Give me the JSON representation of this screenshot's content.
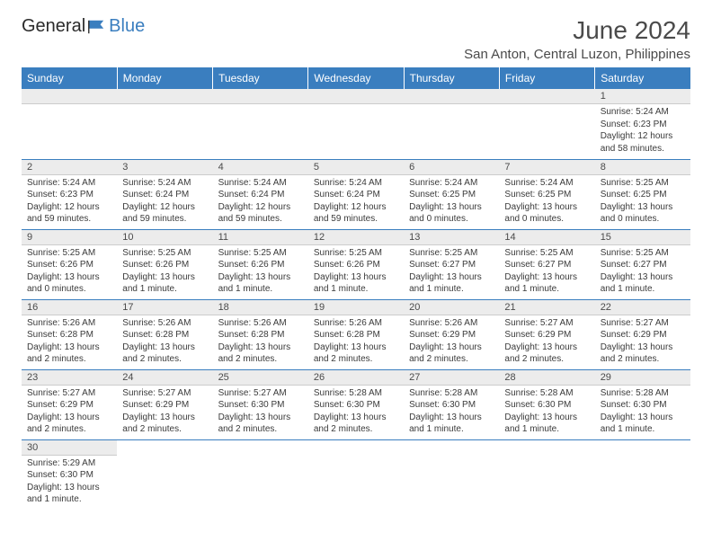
{
  "brand": {
    "part1": "General",
    "part2": "Blue"
  },
  "title": "June 2024",
  "location": "San Anton, Central Luzon, Philippines",
  "colors": {
    "header_bg": "#3a7ebf",
    "header_text": "#ffffff",
    "daynum_bg": "#ececec",
    "row_border": "#3a7ebf",
    "text": "#3a3a3a"
  },
  "weekdays": [
    "Sunday",
    "Monday",
    "Tuesday",
    "Wednesday",
    "Thursday",
    "Friday",
    "Saturday"
  ],
  "weeks": [
    [
      {
        "blank": true
      },
      {
        "blank": true
      },
      {
        "blank": true
      },
      {
        "blank": true
      },
      {
        "blank": true
      },
      {
        "blank": true
      },
      {
        "num": "1",
        "sunrise": "Sunrise: 5:24 AM",
        "sunset": "Sunset: 6:23 PM",
        "daylight": "Daylight: 12 hours and 58 minutes."
      }
    ],
    [
      {
        "num": "2",
        "sunrise": "Sunrise: 5:24 AM",
        "sunset": "Sunset: 6:23 PM",
        "daylight": "Daylight: 12 hours and 59 minutes."
      },
      {
        "num": "3",
        "sunrise": "Sunrise: 5:24 AM",
        "sunset": "Sunset: 6:24 PM",
        "daylight": "Daylight: 12 hours and 59 minutes."
      },
      {
        "num": "4",
        "sunrise": "Sunrise: 5:24 AM",
        "sunset": "Sunset: 6:24 PM",
        "daylight": "Daylight: 12 hours and 59 minutes."
      },
      {
        "num": "5",
        "sunrise": "Sunrise: 5:24 AM",
        "sunset": "Sunset: 6:24 PM",
        "daylight": "Daylight: 12 hours and 59 minutes."
      },
      {
        "num": "6",
        "sunrise": "Sunrise: 5:24 AM",
        "sunset": "Sunset: 6:25 PM",
        "daylight": "Daylight: 13 hours and 0 minutes."
      },
      {
        "num": "7",
        "sunrise": "Sunrise: 5:24 AM",
        "sunset": "Sunset: 6:25 PM",
        "daylight": "Daylight: 13 hours and 0 minutes."
      },
      {
        "num": "8",
        "sunrise": "Sunrise: 5:25 AM",
        "sunset": "Sunset: 6:25 PM",
        "daylight": "Daylight: 13 hours and 0 minutes."
      }
    ],
    [
      {
        "num": "9",
        "sunrise": "Sunrise: 5:25 AM",
        "sunset": "Sunset: 6:26 PM",
        "daylight": "Daylight: 13 hours and 0 minutes."
      },
      {
        "num": "10",
        "sunrise": "Sunrise: 5:25 AM",
        "sunset": "Sunset: 6:26 PM",
        "daylight": "Daylight: 13 hours and 1 minute."
      },
      {
        "num": "11",
        "sunrise": "Sunrise: 5:25 AM",
        "sunset": "Sunset: 6:26 PM",
        "daylight": "Daylight: 13 hours and 1 minute."
      },
      {
        "num": "12",
        "sunrise": "Sunrise: 5:25 AM",
        "sunset": "Sunset: 6:26 PM",
        "daylight": "Daylight: 13 hours and 1 minute."
      },
      {
        "num": "13",
        "sunrise": "Sunrise: 5:25 AM",
        "sunset": "Sunset: 6:27 PM",
        "daylight": "Daylight: 13 hours and 1 minute."
      },
      {
        "num": "14",
        "sunrise": "Sunrise: 5:25 AM",
        "sunset": "Sunset: 6:27 PM",
        "daylight": "Daylight: 13 hours and 1 minute."
      },
      {
        "num": "15",
        "sunrise": "Sunrise: 5:25 AM",
        "sunset": "Sunset: 6:27 PM",
        "daylight": "Daylight: 13 hours and 1 minute."
      }
    ],
    [
      {
        "num": "16",
        "sunrise": "Sunrise: 5:26 AM",
        "sunset": "Sunset: 6:28 PM",
        "daylight": "Daylight: 13 hours and 2 minutes."
      },
      {
        "num": "17",
        "sunrise": "Sunrise: 5:26 AM",
        "sunset": "Sunset: 6:28 PM",
        "daylight": "Daylight: 13 hours and 2 minutes."
      },
      {
        "num": "18",
        "sunrise": "Sunrise: 5:26 AM",
        "sunset": "Sunset: 6:28 PM",
        "daylight": "Daylight: 13 hours and 2 minutes."
      },
      {
        "num": "19",
        "sunrise": "Sunrise: 5:26 AM",
        "sunset": "Sunset: 6:28 PM",
        "daylight": "Daylight: 13 hours and 2 minutes."
      },
      {
        "num": "20",
        "sunrise": "Sunrise: 5:26 AM",
        "sunset": "Sunset: 6:29 PM",
        "daylight": "Daylight: 13 hours and 2 minutes."
      },
      {
        "num": "21",
        "sunrise": "Sunrise: 5:27 AM",
        "sunset": "Sunset: 6:29 PM",
        "daylight": "Daylight: 13 hours and 2 minutes."
      },
      {
        "num": "22",
        "sunrise": "Sunrise: 5:27 AM",
        "sunset": "Sunset: 6:29 PM",
        "daylight": "Daylight: 13 hours and 2 minutes."
      }
    ],
    [
      {
        "num": "23",
        "sunrise": "Sunrise: 5:27 AM",
        "sunset": "Sunset: 6:29 PM",
        "daylight": "Daylight: 13 hours and 2 minutes."
      },
      {
        "num": "24",
        "sunrise": "Sunrise: 5:27 AM",
        "sunset": "Sunset: 6:29 PM",
        "daylight": "Daylight: 13 hours and 2 minutes."
      },
      {
        "num": "25",
        "sunrise": "Sunrise: 5:27 AM",
        "sunset": "Sunset: 6:30 PM",
        "daylight": "Daylight: 13 hours and 2 minutes."
      },
      {
        "num": "26",
        "sunrise": "Sunrise: 5:28 AM",
        "sunset": "Sunset: 6:30 PM",
        "daylight": "Daylight: 13 hours and 2 minutes."
      },
      {
        "num": "27",
        "sunrise": "Sunrise: 5:28 AM",
        "sunset": "Sunset: 6:30 PM",
        "daylight": "Daylight: 13 hours and 1 minute."
      },
      {
        "num": "28",
        "sunrise": "Sunrise: 5:28 AM",
        "sunset": "Sunset: 6:30 PM",
        "daylight": "Daylight: 13 hours and 1 minute."
      },
      {
        "num": "29",
        "sunrise": "Sunrise: 5:28 AM",
        "sunset": "Sunset: 6:30 PM",
        "daylight": "Daylight: 13 hours and 1 minute."
      }
    ],
    [
      {
        "num": "30",
        "sunrise": "Sunrise: 5:29 AM",
        "sunset": "Sunset: 6:30 PM",
        "daylight": "Daylight: 13 hours and 1 minute."
      },
      {
        "blank": true
      },
      {
        "blank": true
      },
      {
        "blank": true
      },
      {
        "blank": true
      },
      {
        "blank": true
      },
      {
        "blank": true
      }
    ]
  ]
}
